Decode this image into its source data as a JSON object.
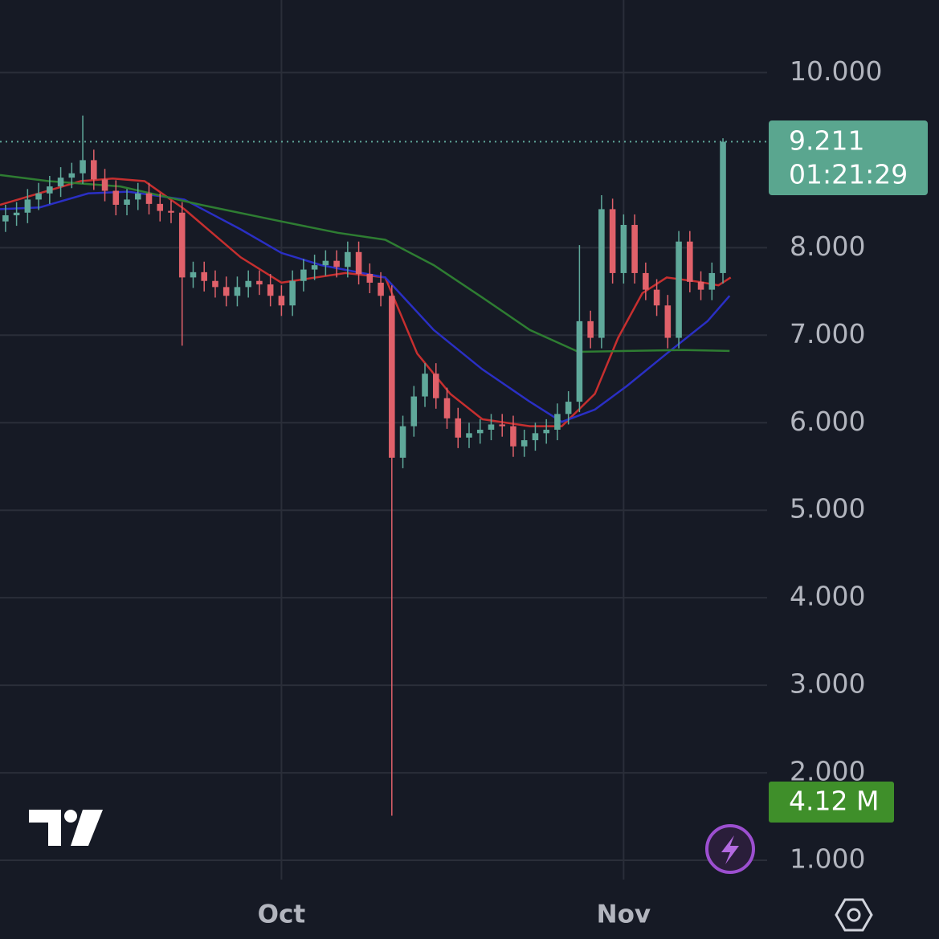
{
  "chart_data": {
    "type": "candlestick",
    "xlim": [
      -25.5,
      44
    ],
    "ylim": [
      0.78,
      10.83
    ],
    "xticks": [
      {
        "value": 0,
        "label": "Oct"
      },
      {
        "value": 31,
        "label": "Nov"
      }
    ],
    "yticks": [
      {
        "value": 1,
        "label": "1.000"
      },
      {
        "value": 2,
        "label": "2.000"
      },
      {
        "value": 3,
        "label": "3.000"
      },
      {
        "value": 4,
        "label": "4.000"
      },
      {
        "value": 5,
        "label": "5.000"
      },
      {
        "value": 6,
        "label": "6.000"
      },
      {
        "value": 7,
        "label": "7.000"
      },
      {
        "value": 8,
        "label": "8.000"
      },
      {
        "value": 10,
        "label": "10.000"
      }
    ],
    "grid": true,
    "up_color": "#5fa89a",
    "down_color": "#e0616a",
    "x": [
      -25,
      -24,
      -23,
      -22,
      -21,
      -20,
      -19,
      -18,
      -17,
      -16,
      -15,
      -14,
      -13,
      -12,
      -11,
      -10,
      -9,
      -8,
      -7,
      -6,
      -5,
      -4,
      -3,
      -2,
      -1,
      0,
      1,
      2,
      3,
      4,
      5,
      6,
      7,
      8,
      9,
      10,
      11,
      12,
      13,
      14,
      15,
      16,
      17,
      18,
      19,
      20,
      21,
      22,
      23,
      24,
      25,
      26,
      27,
      28,
      29,
      30,
      31,
      32,
      33,
      34,
      35,
      36,
      37,
      38,
      39,
      40
    ],
    "open": [
      8.3,
      8.37,
      8.4,
      8.55,
      8.62,
      8.7,
      8.8,
      8.85,
      9.0,
      8.78,
      8.65,
      8.49,
      8.55,
      8.62,
      8.5,
      8.42,
      8.4,
      7.66,
      7.72,
      7.62,
      7.55,
      7.45,
      7.55,
      7.62,
      7.58,
      7.45,
      7.34,
      7.62,
      7.75,
      7.8,
      7.85,
      7.78,
      7.95,
      7.7,
      7.6,
      7.45,
      5.6,
      5.96,
      6.3,
      6.56,
      6.28,
      6.05,
      5.83,
      5.88,
      5.92,
      5.98,
      5.96,
      5.73,
      5.8,
      5.88,
      5.92,
      6.1,
      6.24,
      7.16,
      6.97,
      8.44,
      7.71,
      8.26,
      7.71,
      7.52,
      7.34,
      6.97,
      8.07,
      7.61,
      7.52,
      7.71
    ],
    "high": [
      8.49,
      8.52,
      8.67,
      8.74,
      8.82,
      8.92,
      8.97,
      9.51,
      9.12,
      8.9,
      8.77,
      8.67,
      8.74,
      8.74,
      8.62,
      8.54,
      8.52,
      7.84,
      7.84,
      7.74,
      7.67,
      7.67,
      7.74,
      7.74,
      7.7,
      7.57,
      7.74,
      7.87,
      7.92,
      7.97,
      7.97,
      8.07,
      8.07,
      7.82,
      7.72,
      7.57,
      6.08,
      6.42,
      6.68,
      6.68,
      6.4,
      6.17,
      6.0,
      6.04,
      6.1,
      6.1,
      6.08,
      5.92,
      6.0,
      6.04,
      6.22,
      6.36,
      8.03,
      7.28,
      8.6,
      8.56,
      8.38,
      8.38,
      7.83,
      7.64,
      7.46,
      8.19,
      8.19,
      7.73,
      7.83,
      9.25
    ],
    "low": [
      8.18,
      8.25,
      8.28,
      8.43,
      8.5,
      8.58,
      8.68,
      8.73,
      8.66,
      8.53,
      8.37,
      8.37,
      8.43,
      8.38,
      8.3,
      8.28,
      6.88,
      7.54,
      7.5,
      7.43,
      7.33,
      7.33,
      7.43,
      7.46,
      7.33,
      7.22,
      7.22,
      7.5,
      7.63,
      7.68,
      7.66,
      7.66,
      7.58,
      7.48,
      7.33,
      1.51,
      5.48,
      5.84,
      6.18,
      6.16,
      5.93,
      5.71,
      5.71,
      5.76,
      5.8,
      5.84,
      5.61,
      5.61,
      5.68,
      5.76,
      5.8,
      5.98,
      6.12,
      6.85,
      6.85,
      7.59,
      7.59,
      7.59,
      7.4,
      7.22,
      6.85,
      6.85,
      7.49,
      7.4,
      7.4,
      7.59
    ],
    "close": [
      8.37,
      8.4,
      8.55,
      8.62,
      8.7,
      8.8,
      8.85,
      9.0,
      8.78,
      8.65,
      8.49,
      8.55,
      8.62,
      8.5,
      8.42,
      8.4,
      7.66,
      7.72,
      7.62,
      7.55,
      7.45,
      7.55,
      7.62,
      7.58,
      7.45,
      7.34,
      7.62,
      7.75,
      7.8,
      7.85,
      7.78,
      7.95,
      7.7,
      7.6,
      7.45,
      5.6,
      5.96,
      6.3,
      6.56,
      6.28,
      6.05,
      5.83,
      5.88,
      5.92,
      5.98,
      5.96,
      5.73,
      5.8,
      5.88,
      5.92,
      6.1,
      6.24,
      7.16,
      6.97,
      8.44,
      7.71,
      8.26,
      7.71,
      7.52,
      7.34,
      6.97,
      8.07,
      7.61,
      7.52,
      7.71,
      9.21
    ],
    "moving_averages": [
      {
        "color": "#c62f2f",
        "x": [
          -25.5,
          -18.2,
          -15.3,
          -12.4,
          -8.8,
          -3.7,
          0,
          5.8,
          9.4,
          12.3,
          15.3,
          18.2,
          22.5,
          25.4,
          28.4,
          30.5,
          32.7,
          34.9,
          37.8,
          39.6,
          40.7
        ],
        "values": [
          8.49,
          8.76,
          8.79,
          8.76,
          8.44,
          7.89,
          7.6,
          7.71,
          7.66,
          6.79,
          6.33,
          6.04,
          5.96,
          5.96,
          6.33,
          6.97,
          7.48,
          7.66,
          7.61,
          7.57,
          7.66
        ]
      },
      {
        "color": "#2a2fc4",
        "x": [
          -25.5,
          -21.9,
          -17.5,
          -13.9,
          -8.8,
          -3.7,
          0,
          3.6,
          9.4,
          13.8,
          18.2,
          22.5,
          25.4,
          28.4,
          31.3,
          34.9,
          38.6,
          40.6
        ],
        "values": [
          8.44,
          8.46,
          8.62,
          8.64,
          8.55,
          8.21,
          7.94,
          7.8,
          7.66,
          7.06,
          6.61,
          6.24,
          6.01,
          6.15,
          6.42,
          6.79,
          7.16,
          7.45
        ]
      },
      {
        "color": "#2e7d32",
        "x": [
          -25.5,
          -21.1,
          -14.6,
          -7.3,
          0,
          5.1,
          9.4,
          13.8,
          18.2,
          22.5,
          26.9,
          31.3,
          36.4,
          40.6
        ],
        "values": [
          8.83,
          8.76,
          8.7,
          8.49,
          8.3,
          8.17,
          8.09,
          7.8,
          7.43,
          7.06,
          6.81,
          6.82,
          6.83,
          6.82
        ]
      }
    ],
    "last_price": {
      "value": 9.211,
      "label": "9.211"
    },
    "countdown": "01:21:29",
    "volume_label": "4.12 M"
  }
}
